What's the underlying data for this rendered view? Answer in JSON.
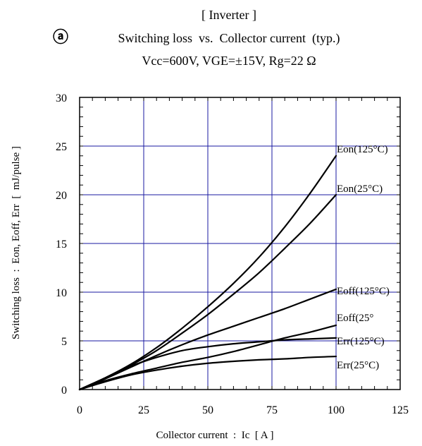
{
  "chart_data": {
    "type": "line",
    "panel_mark": "ⓐ",
    "heading": "[ Inverter ]",
    "title": "Switching loss  vs.  Collector current  (typ.)",
    "subtitle": "Vcc=600V, VGE=±15V, Rg=22 Ω",
    "xlabel": "Collector current  :  Ic  [ A ]",
    "ylabel": "Switching loss  :  Eon, Eoff, Err  [  mJ/pulse ]",
    "xlim": [
      0,
      125
    ],
    "ylim": [
      0,
      30
    ],
    "x_ticks": [
      0,
      25,
      50,
      75,
      100,
      125
    ],
    "y_ticks": [
      0,
      5,
      10,
      15,
      20,
      25,
      30
    ],
    "x_minor_step": 5,
    "y_minor_step": 1,
    "grid": true,
    "grid_color": "#1a1aa0",
    "line_color": "#000000",
    "series": [
      {
        "name": "Eon(125°C)",
        "x": [
          0,
          10,
          20,
          30,
          40,
          50,
          60,
          70,
          80,
          90,
          100
        ],
        "y": [
          0,
          1.2,
          2.6,
          4.3,
          6.3,
          8.5,
          10.9,
          13.6,
          16.7,
          20.2,
          24.0
        ]
      },
      {
        "name": "Eon(25°C)",
        "x": [
          0,
          10,
          20,
          30,
          40,
          50,
          60,
          70,
          80,
          90,
          100
        ],
        "y": [
          0,
          1.2,
          2.5,
          4.0,
          5.8,
          7.7,
          9.8,
          12.0,
          14.5,
          17.1,
          20.0
        ]
      },
      {
        "name": "Eoff(125°C)",
        "x": [
          0,
          10,
          20,
          30,
          40,
          50,
          60,
          70,
          80,
          90,
          100
        ],
        "y": [
          0,
          1.1,
          2.3,
          3.5,
          4.6,
          5.6,
          6.5,
          7.4,
          8.3,
          9.3,
          10.3
        ]
      },
      {
        "name": "Eoff(25°",
        "x": [
          0,
          10,
          20,
          30,
          40,
          50,
          60,
          70,
          80,
          90,
          100
        ],
        "y": [
          0,
          0.9,
          1.6,
          2.2,
          2.8,
          3.3,
          3.9,
          4.6,
          5.3,
          5.9,
          6.6
        ]
      },
      {
        "name": "Err(125°C)",
        "x": [
          0,
          10,
          20,
          30,
          40,
          50,
          60,
          70,
          80,
          90,
          100
        ],
        "y": [
          0,
          1.2,
          2.4,
          3.3,
          4.0,
          4.4,
          4.7,
          4.9,
          5.1,
          5.2,
          5.3
        ]
      },
      {
        "name": "Err(25°C)",
        "x": [
          0,
          10,
          20,
          30,
          40,
          50,
          60,
          70,
          80,
          90,
          100
        ],
        "y": [
          0,
          0.8,
          1.5,
          2.0,
          2.4,
          2.7,
          2.9,
          3.05,
          3.15,
          3.3,
          3.4
        ]
      }
    ]
  }
}
